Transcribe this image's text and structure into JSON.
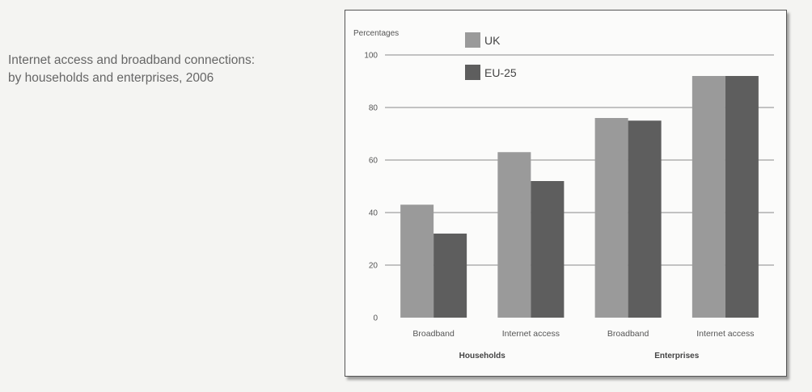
{
  "caption": {
    "line1": "Internet access and broadband connections:",
    "line2": "by households and enterprises, 2006"
  },
  "chart_data": {
    "type": "bar",
    "ylabel": "Percentages",
    "ylim": [
      0,
      100
    ],
    "yticks": [
      0,
      20,
      40,
      60,
      80,
      100
    ],
    "grid": true,
    "legend_position": "top-left",
    "categories": [
      "Broadband",
      "Internet access",
      "Broadband",
      "Internet access"
    ],
    "groups": [
      {
        "label": "Households",
        "categories": [
          0,
          1
        ]
      },
      {
        "label": "Enterprises",
        "categories": [
          2,
          3
        ]
      }
    ],
    "series": [
      {
        "name": "UK",
        "color": "#9a9a9a",
        "values": [
          43,
          63,
          76,
          92
        ]
      },
      {
        "name": "EU-25",
        "color": "#5e5e5e",
        "values": [
          32,
          52,
          75,
          92
        ]
      }
    ]
  }
}
